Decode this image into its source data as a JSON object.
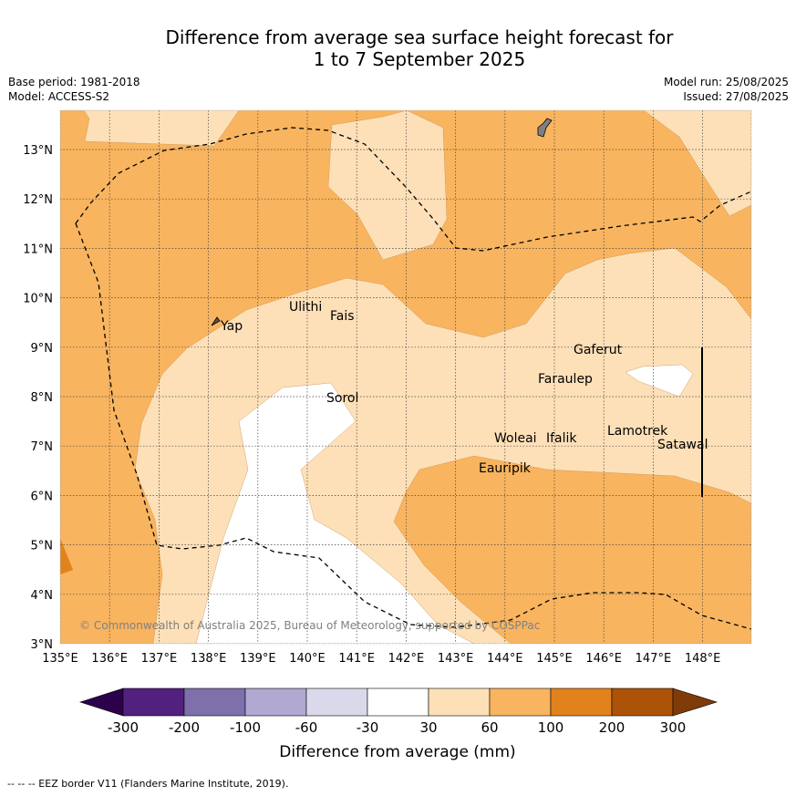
{
  "title_line1": "Difference from average sea surface height forecast for",
  "title_line2": "1 to 7 September 2025",
  "base_period": "Base period: 1981-2018",
  "model": "Model: ACCESS-S2",
  "model_run": "Model run: 25/08/2025",
  "issued": "Issued: 27/08/2025",
  "copyright": "© Commonwealth of Australia 2025, Bureau of Meteorology, supported by COSPPac",
  "lat_labels": [
    "13°N",
    "12°N",
    "11°N",
    "10°N",
    "9°N",
    "8°N",
    "7°N",
    "6°N",
    "5°N",
    "4°N",
    "3°N"
  ],
  "lon_labels": [
    "135°E",
    "136°E",
    "137°E",
    "138°E",
    "139°E",
    "140°E",
    "141°E",
    "142°E",
    "143°E",
    "144°E",
    "145°E",
    "146°E",
    "147°E",
    "148°E"
  ],
  "places": {
    "yap": "Yap",
    "ulithi": "Ulithi",
    "fais": "Fais",
    "sorol": "Sorol",
    "gaferut": "Gaferut",
    "faraulep": "Faraulep",
    "woleai": "Woleai",
    "ifalik": "Ifalik",
    "lamotrek": "Lamotrek",
    "satawal": "Satawal",
    "eauripik": "Eauripik"
  },
  "colorbar": {
    "title": "Difference from average (mm)",
    "ticks": [
      "-300",
      "-200",
      "-100",
      "-60",
      "-30",
      "30",
      "60",
      "100",
      "200",
      "300"
    ],
    "colors": [
      "#52207f",
      "#7e70ab",
      "#b1a9d2",
      "#d9d9eb",
      "#ffffff",
      "#fde0b7",
      "#f9b45f",
      "#e2821c",
      "#ac5308"
    ],
    "under_color": "#2d004b",
    "over_color": "#7f3b08"
  },
  "footer": "--  --  -- EEZ border V11 (Flanders Marine Institute, 2019).",
  "colors": {
    "light_orange": "#fde0b7",
    "orange": "#f9b45f",
    "dark_orange": "#e2821c"
  }
}
